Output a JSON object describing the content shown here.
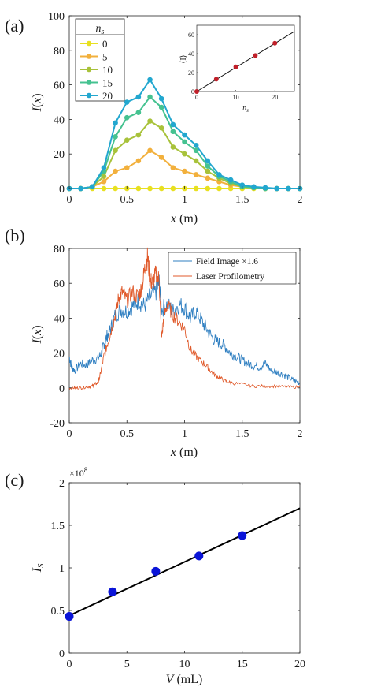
{
  "chart_data": [
    {
      "panel": "(a)",
      "type": "line",
      "xlabel": "x (m)",
      "ylabel": "I(x)",
      "xlim": [
        0,
        2
      ],
      "ylim": [
        0,
        100
      ],
      "xticks": [
        "0",
        "0.5",
        "1",
        "1.5",
        "2"
      ],
      "yticks": [
        "0",
        "20",
        "40",
        "60",
        "80",
        "100"
      ],
      "legend_title": "n_s",
      "legend_position": "top-left",
      "x": [
        0,
        0.1,
        0.2,
        0.3,
        0.4,
        0.5,
        0.6,
        0.7,
        0.8,
        0.9,
        1.0,
        1.1,
        1.2,
        1.3,
        1.4,
        1.5,
        1.6,
        1.7,
        1.8,
        1.9,
        2.0
      ],
      "series": [
        {
          "name": "0",
          "color": "#e8e020",
          "values": [
            0,
            0,
            0,
            0,
            0,
            0,
            0,
            0,
            0,
            0,
            0,
            0,
            0,
            0,
            0,
            0,
            0,
            0,
            0,
            0,
            0
          ]
        },
        {
          "name": "5",
          "color": "#f2b03c",
          "values": [
            0,
            0,
            1,
            4,
            10,
            12,
            16,
            22,
            18,
            12,
            10,
            8,
            6,
            4,
            2,
            1,
            0.5,
            0,
            0,
            0,
            0
          ]
        },
        {
          "name": "10",
          "color": "#a8c23a",
          "values": [
            0,
            0,
            1,
            7,
            22,
            28,
            31,
            39,
            35,
            24,
            20,
            16,
            10,
            6,
            3,
            1,
            0.5,
            0,
            0,
            0,
            0
          ]
        },
        {
          "name": "15",
          "color": "#45c290",
          "values": [
            0,
            0,
            1,
            10,
            30,
            41,
            44,
            53,
            47,
            33,
            27,
            22,
            13,
            7,
            4,
            1,
            0.5,
            0,
            0,
            0,
            0
          ]
        },
        {
          "name": "20",
          "color": "#22a7cf",
          "values": [
            0,
            0,
            1,
            12,
            38,
            50,
            53,
            63,
            52,
            37,
            31,
            25,
            16,
            8,
            5,
            2,
            1,
            0.5,
            0,
            0,
            0
          ]
        }
      ],
      "inset": {
        "type": "scatter",
        "xlabel": "n_s",
        "ylabel": "⟨I⟩",
        "xlim": [
          0,
          25
        ],
        "ylim": [
          0,
          70
        ],
        "xticks": [
          "0",
          "10",
          "20"
        ],
        "yticks": [
          "0",
          "20",
          "40",
          "60"
        ],
        "points": [
          [
            0,
            0
          ],
          [
            5,
            13
          ],
          [
            10,
            26
          ],
          [
            15,
            38
          ],
          [
            20,
            51
          ]
        ],
        "fit_line": [
          [
            0,
            0
          ],
          [
            25,
            63.5
          ]
        ],
        "point_color": "#c0202a"
      }
    },
    {
      "panel": "(b)",
      "type": "line",
      "xlabel": "x (m)",
      "ylabel": "I(x)",
      "xlim": [
        0,
        2
      ],
      "ylim": [
        -20,
        80
      ],
      "xticks": [
        "0",
        "0.5",
        "1",
        "1.5",
        "2"
      ],
      "yticks": [
        "-20",
        "0",
        "20",
        "40",
        "60",
        "80"
      ],
      "legend_position": "top-right",
      "series": [
        {
          "name": "Field Image ×1.6",
          "color": "#2f7fc1",
          "x": [
            0,
            0.02,
            0.05,
            0.1,
            0.15,
            0.2,
            0.25,
            0.28,
            0.3,
            0.33,
            0.36,
            0.4,
            0.45,
            0.5,
            0.55,
            0.6,
            0.65,
            0.7,
            0.75,
            0.78,
            0.8,
            0.85,
            0.9,
            0.95,
            1.0,
            1.05,
            1.1,
            1.15,
            1.2,
            1.25,
            1.3,
            1.35,
            1.4,
            1.45,
            1.5,
            1.55,
            1.6,
            1.65,
            1.7,
            1.75,
            1.8,
            1.85,
            1.9,
            1.95,
            2.0
          ],
          "values": [
            18,
            12,
            10,
            14,
            13,
            16,
            17,
            20,
            25,
            30,
            34,
            42,
            45,
            44,
            47,
            50,
            47,
            52,
            55,
            60,
            45,
            48,
            44,
            48,
            46,
            40,
            44,
            38,
            33,
            28,
            26,
            24,
            20,
            18,
            16,
            14,
            13,
            12,
            14,
            10,
            9,
            8,
            6,
            4,
            3
          ]
        },
        {
          "name": "Laser Profilometry",
          "color": "#e05a2b",
          "x": [
            0,
            0.05,
            0.1,
            0.15,
            0.2,
            0.22,
            0.25,
            0.27,
            0.3,
            0.33,
            0.36,
            0.4,
            0.43,
            0.46,
            0.5,
            0.55,
            0.6,
            0.63,
            0.66,
            0.68,
            0.7,
            0.72,
            0.75,
            0.78,
            0.8,
            0.82,
            0.85,
            0.9,
            0.95,
            1.0,
            1.05,
            1.1,
            1.15,
            1.2,
            1.25,
            1.3,
            1.35,
            1.4,
            1.5,
            1.6,
            1.7,
            1.8,
            1.9,
            2.0
          ],
          "values": [
            0,
            0,
            0,
            0.5,
            1,
            2,
            3,
            8,
            18,
            25,
            32,
            42,
            52,
            55,
            50,
            55,
            52,
            58,
            70,
            75,
            62,
            60,
            65,
            62,
            28,
            40,
            48,
            42,
            38,
            34,
            22,
            18,
            15,
            12,
            8,
            6,
            4,
            3,
            2,
            1,
            1,
            1,
            0.5,
            0.5
          ]
        }
      ]
    },
    {
      "panel": "(c)",
      "type": "scatter",
      "xlabel": "V (mL)",
      "ylabel": "I_S",
      "multiplier": "×10^8",
      "xlim": [
        0,
        20
      ],
      "ylim": [
        0,
        2
      ],
      "xticks": [
        "0",
        "5",
        "10",
        "15",
        "20"
      ],
      "yticks": [
        "0",
        "0.5",
        "1",
        "1.5",
        "2"
      ],
      "points": [
        [
          0,
          0.43
        ],
        [
          3.75,
          0.72
        ],
        [
          7.5,
          0.96
        ],
        [
          11.25,
          1.14
        ],
        [
          15,
          1.38
        ]
      ],
      "fit_line": [
        [
          0,
          0.44
        ],
        [
          20,
          1.7
        ]
      ],
      "point_color": "#0a14d8"
    }
  ]
}
